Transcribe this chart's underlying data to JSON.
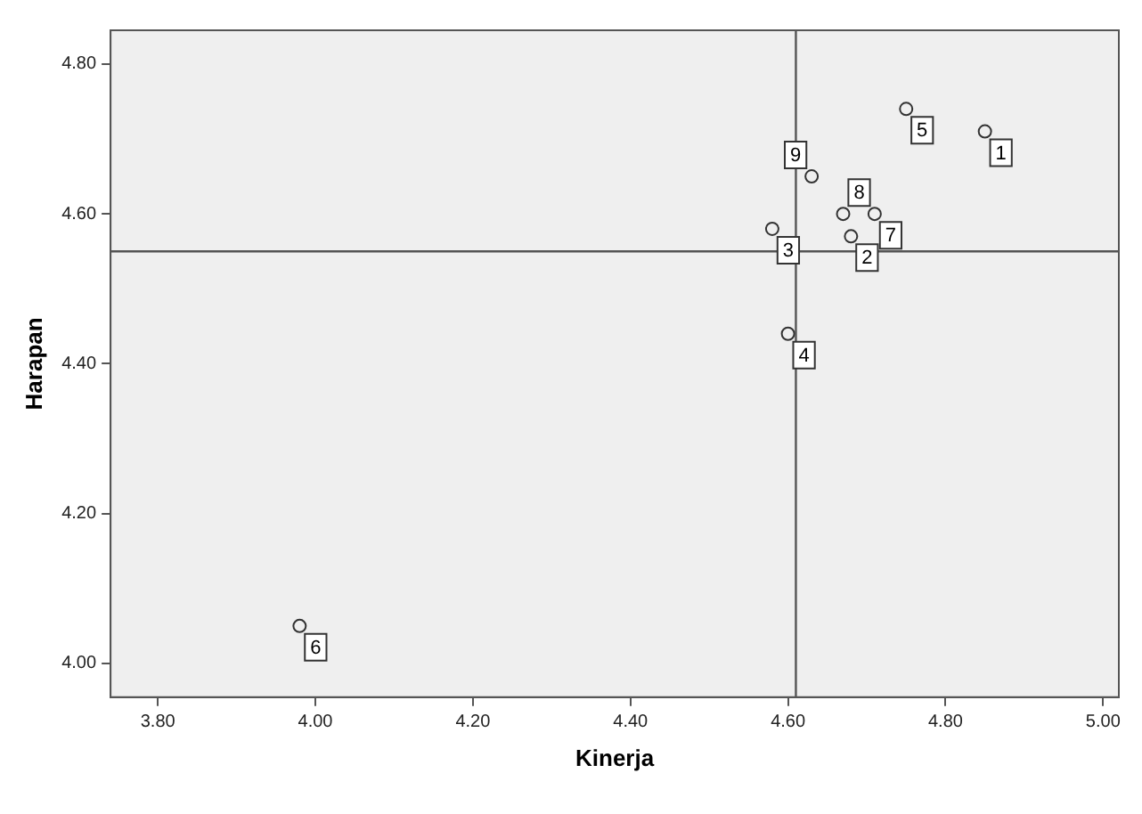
{
  "chart_data": {
    "type": "scatter",
    "xlabel": "Kinerja",
    "ylabel": "Harapan",
    "series": [
      {
        "color": "#333333",
        "x": [
          4.85,
          4.68,
          4.58,
          4.6,
          4.75,
          3.98,
          4.71,
          4.67,
          4.63
        ],
        "values": [
          4.71,
          4.57,
          4.58,
          4.44,
          4.74,
          4.05,
          4.6,
          4.6,
          4.65
        ]
      }
    ],
    "annotations": [
      {
        "text": "1",
        "x": 4.85,
        "y": 4.71
      },
      {
        "text": "2",
        "x": 4.68,
        "y": 4.57
      },
      {
        "text": "3",
        "x": 4.58,
        "y": 4.58
      },
      {
        "text": "4",
        "x": 4.6,
        "y": 4.44
      },
      {
        "text": "5",
        "x": 4.75,
        "y": 4.74
      },
      {
        "text": "6",
        "x": 3.98,
        "y": 4.05
      },
      {
        "text": "7",
        "x": 4.71,
        "y": 4.6
      },
      {
        "text": "8",
        "x": 4.67,
        "y": 4.6
      },
      {
        "text": "9",
        "x": 4.63,
        "y": 4.65
      }
    ],
    "ref_lines": [
      {
        "axis": "x",
        "value": 4.61,
        "color": "#555555"
      },
      {
        "axis": "y",
        "value": 4.55,
        "color": "#555555"
      }
    ],
    "xlim": [
      3.74,
      5.02
    ],
    "ylim": [
      3.955,
      4.845
    ],
    "xticks": [
      {
        "value": 3.8,
        "label": "3.80"
      },
      {
        "value": 4.0,
        "label": "4.00"
      },
      {
        "value": 4.2,
        "label": "4.20"
      },
      {
        "value": 4.4,
        "label": "4.40"
      },
      {
        "value": 4.6,
        "label": "4.60"
      },
      {
        "value": 4.8,
        "label": "4.80"
      },
      {
        "value": 5.0,
        "label": "5.00"
      }
    ],
    "yticks": [
      {
        "value": 4.0,
        "label": "4.00"
      },
      {
        "value": 4.2,
        "label": "4.20"
      },
      {
        "value": 4.4,
        "label": "4.40"
      },
      {
        "value": 4.6,
        "label": "4.60"
      },
      {
        "value": 4.8,
        "label": "4.80"
      }
    ],
    "grid": false,
    "legend": false,
    "marker": "circle"
  }
}
